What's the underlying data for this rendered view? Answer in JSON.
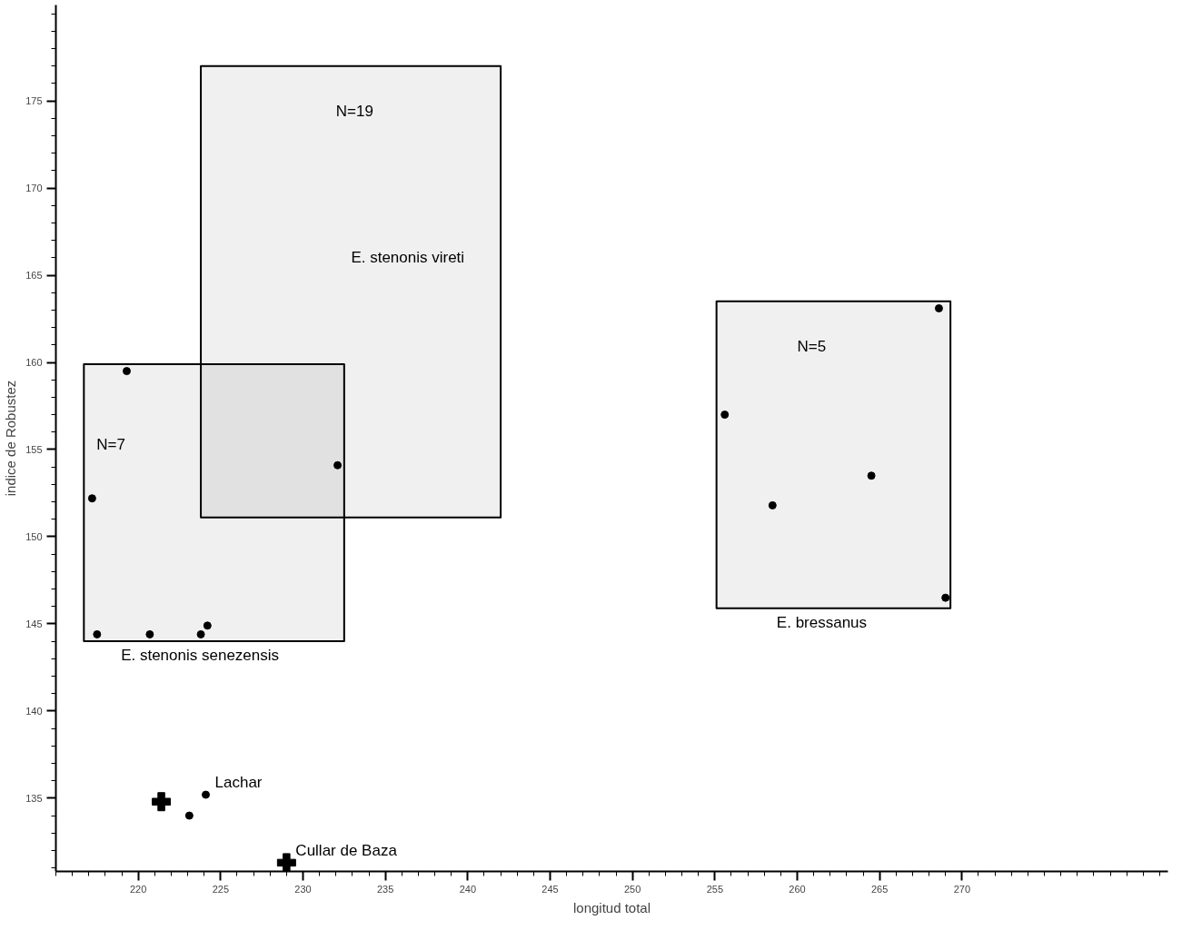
{
  "chart_data": {
    "type": "scatter",
    "xlabel": "longitud total",
    "ylabel": "indice de Robustez",
    "xlim": [
      215,
      282.5
    ],
    "ylim": [
      130.8,
      180.5
    ],
    "xticks": [
      220,
      225,
      230,
      235,
      240,
      245,
      250,
      255,
      260,
      265,
      270
    ],
    "yticks": [
      135,
      140,
      145,
      150,
      155,
      160,
      165,
      170,
      175
    ],
    "grid": false,
    "series": [
      {
        "type": "line",
        "marker": "none",
        "color": "#000000",
        "x": [
          216.7,
          232.5
        ],
        "values": [
          null,
          null
        ],
        "lower": [
          144.0,
          144.0
        ],
        "upper": [
          159.9,
          159.9
        ]
      },
      {
        "type": "line",
        "marker": "none",
        "color": "#000000",
        "x": [
          223.8,
          242.0
        ],
        "values": [
          null,
          null
        ],
        "lower": [
          151.1,
          151.1
        ],
        "upper": [
          177.0,
          177.0
        ]
      },
      {
        "type": "line",
        "marker": "none",
        "color": "#000000",
        "x": [
          255.1,
          269.3
        ],
        "values": [
          null,
          null
        ],
        "lower": [
          145.9,
          145.9
        ],
        "upper": [
          163.5,
          163.5
        ]
      },
      {
        "marker": "circle",
        "color": "#000000",
        "x": [
          217.2,
          217.5,
          219.3,
          220.7,
          223.8,
          224.2,
          232.1
        ],
        "values": [
          152.2,
          144.4,
          159.5,
          144.4,
          144.4,
          144.9,
          154.1
        ]
      },
      {
        "marker": "circle",
        "color": "#000000",
        "x": [
          255.6,
          258.5,
          264.5,
          268.6,
          269.0
        ],
        "values": [
          157.0,
          151.8,
          153.5,
          163.1,
          146.5
        ]
      },
      {
        "type": "scatter",
        "marker": "cross",
        "color": "#000000",
        "x": [
          221.4,
          229.0
        ],
        "values": [
          134.8,
          131.3
        ]
      },
      {
        "type": "scatter",
        "marker": "circle",
        "color": "#000000",
        "x": [
          223.1,
          224.1
        ],
        "values": [
          134.0,
          135.2
        ]
      }
    ],
    "annotations": [
      {
        "text": "N=19",
        "x": 232.0,
        "y": 177.0
      },
      {
        "text": "E. stenonis vireti",
        "x": 242.0,
        "y": 166.0
      },
      {
        "text": "N=7",
        "x": 216.7,
        "y": 155.3
      },
      {
        "text": "E. stenonis senezensis",
        "x": 218.4,
        "y": 144.0
      },
      {
        "text": "N=5",
        "x": 260.0,
        "y": 163.5
      },
      {
        "text": "E. bressanus",
        "x": 258.2,
        "y": 145.9
      },
      {
        "text": "Lachar",
        "x": 224.1,
        "y": 135.2
      },
      {
        "text": "Cullar de Baza",
        "x": 229.0,
        "y": 131.3
      }
    ]
  }
}
